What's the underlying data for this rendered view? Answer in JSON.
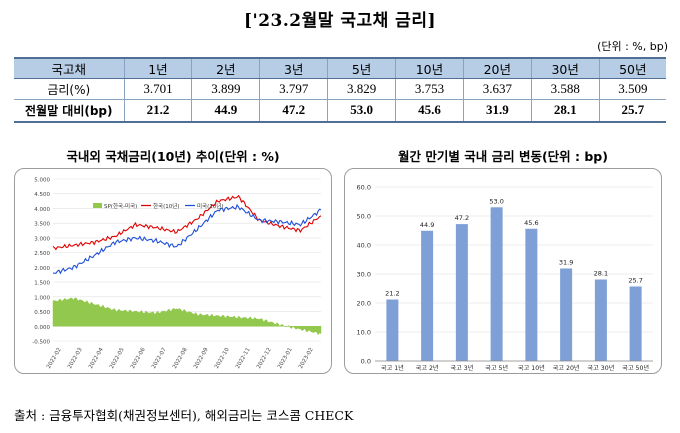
{
  "title": "['23.2월말 국고채 금리]",
  "unit": "(단위 : %, bp)",
  "table": {
    "header_label": "국고채",
    "columns": [
      "1년",
      "2년",
      "3년",
      "5년",
      "10년",
      "20년",
      "30년",
      "50년"
    ],
    "rows": [
      {
        "label": "금리(%)",
        "values": [
          "3.701",
          "3.899",
          "3.797",
          "3.829",
          "3.753",
          "3.637",
          "3.588",
          "3.509"
        ]
      },
      {
        "label": "전월말 대비(bp)",
        "values": [
          "21.2",
          "44.9",
          "47.2",
          "53.0",
          "45.6",
          "31.9",
          "28.1",
          "25.7"
        ]
      }
    ]
  },
  "left_title": "국내외 국채금리(10년) 추이(단위 : %)",
  "right_title": "월간 만기별 국내 금리 변동(단위 : bp)",
  "source": "출처 : 금융투자협회(채권정보센터), 해외금리는 코스콤 CHECK",
  "colors": {
    "korea": "#e00000",
    "us": "#1f4fd8",
    "spread": "#92c84e",
    "bar": "#7ea0d6"
  },
  "chart_data": [
    {
      "type": "line",
      "title": "국내외 국채금리(10년) 추이(단위 : %)",
      "ylim": [
        -0.5,
        5.0
      ],
      "y_ticks": [
        "5.000",
        "4.500",
        "4.000",
        "3.500",
        "3.000",
        "2.500",
        "2.000",
        "1.500",
        "1.000",
        "0.500",
        "0.000",
        "-0.500"
      ],
      "x_ticks": [
        "2022-02",
        "2022-03",
        "2022-04",
        "2022-05",
        "2022-06",
        "2022-07",
        "2022-08",
        "2022-09",
        "2022-10",
        "2022-11",
        "2022-12",
        "2023-01",
        "2023-02"
      ],
      "legend": [
        "SP(한국-미국)",
        "한국(10년)",
        "미국(10년)"
      ],
      "series": [
        {
          "name": "SP(한국-미국)",
          "type": "area",
          "values": [
            0.85,
            0.95,
            0.75,
            0.55,
            0.5,
            0.45,
            0.6,
            0.4,
            0.35,
            0.3,
            0.25,
            0.05,
            -0.1,
            -0.25
          ]
        },
        {
          "name": "한국(10년)",
          "values": [
            2.65,
            2.75,
            2.85,
            3.05,
            3.45,
            3.35,
            3.2,
            3.65,
            4.25,
            4.4,
            3.6,
            3.4,
            3.25,
            3.75
          ]
        },
        {
          "name": "미국(10년)",
          "values": [
            1.8,
            2.0,
            2.4,
            2.85,
            3.0,
            2.9,
            2.7,
            3.3,
            3.95,
            4.05,
            3.6,
            3.55,
            3.45,
            3.95
          ]
        }
      ]
    },
    {
      "type": "bar",
      "title": "월간 만기별 국내 금리 변동(단위 : bp)",
      "categories": [
        "국고 1년",
        "국고 2년",
        "국고 3년",
        "국고 5년",
        "국고 10년",
        "국고 20년",
        "국고 30년",
        "국고 50년"
      ],
      "values": [
        21.2,
        44.9,
        47.2,
        53.0,
        45.6,
        31.9,
        28.1,
        25.7
      ],
      "labels": [
        "21.2",
        "44.9",
        "47.2",
        "53.0",
        "45.6",
        "31.9",
        "28.1",
        "25.7"
      ],
      "ylim": [
        0,
        60
      ],
      "y_ticks": [
        "60.0",
        "50.0",
        "40.0",
        "30.0",
        "20.0",
        "10.0",
        "0.0"
      ]
    }
  ]
}
